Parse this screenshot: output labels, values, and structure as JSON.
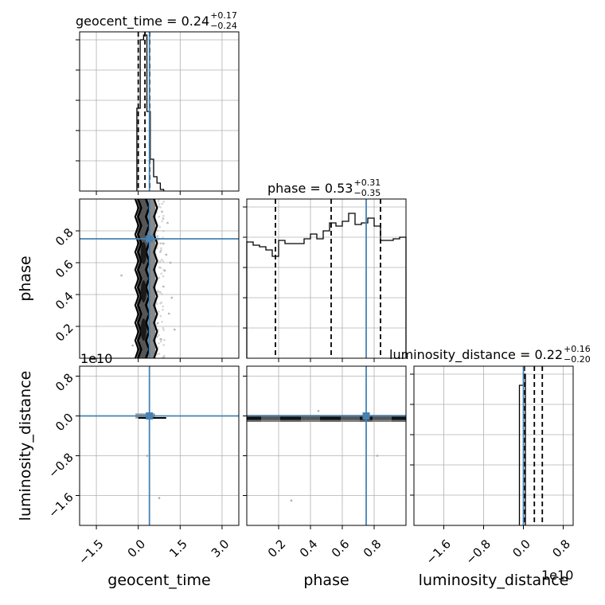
{
  "chart_data": {
    "type": "corner",
    "parameters": [
      "geocent_time",
      "phase",
      "luminosity_distance"
    ],
    "truth_color": "#4682b4",
    "titles": [
      {
        "param": "geocent_time",
        "median": "0.24",
        "plus": "+0.17",
        "minus": "−0.24"
      },
      {
        "param": "phase",
        "median": "0.53",
        "plus": "+0.31",
        "minus": "−0.35"
      },
      {
        "param": "luminosity_distance",
        "median": "0.22",
        "plus": "+0.16",
        "minus": "−0.20"
      }
    ],
    "axis_labels": {
      "x": [
        "geocent_time",
        "phase",
        "luminosity_distance"
      ],
      "y": [
        "phase",
        "luminosity_distance"
      ]
    },
    "offset_labels": {
      "ld_y": "1e10",
      "ld_x": "1e10"
    },
    "truths": {
      "geocent_time": 0.4,
      "phase": 0.75,
      "luminosity_distance": 0.0
    },
    "ranges": {
      "geocent_time": [
        -2.1,
        3.6
      ],
      "phase": [
        0.0,
        1.0
      ],
      "luminosity_distance": [
        -2.2,
        1.0
      ]
    },
    "ticks": {
      "geocent_time": {
        "values": [
          -1.5,
          0.0,
          1.5,
          3.0
        ],
        "labels": [
          "−1.5",
          "0.0",
          "1.5",
          "3.0"
        ]
      },
      "phase_x": {
        "values": [
          0.2,
          0.4,
          0.6,
          0.8
        ],
        "labels": [
          "0.2",
          "0.4",
          "0.6",
          "0.8"
        ]
      },
      "phase_y": {
        "values": [
          0.2,
          0.4,
          0.6,
          0.8
        ],
        "labels": [
          "0.2",
          "0.4",
          "0.6",
          "0.8"
        ]
      },
      "luminosity_distance_x": {
        "values": [
          -1.6,
          -0.8,
          0.0,
          0.8
        ],
        "labels": [
          "−1.6",
          "−0.8",
          "0.0",
          "0.8"
        ]
      },
      "luminosity_distance_y": {
        "values": [
          -1.6,
          -0.8,
          0.0,
          0.8
        ],
        "labels": [
          "−1.6",
          "−0.8",
          "0.0",
          "0.8"
        ]
      }
    },
    "quantile_lines": {
      "geocent_time": [
        0.0,
        0.24,
        0.41
      ],
      "phase": [
        0.18,
        0.53,
        0.84
      ],
      "luminosity_distance": [
        0.02,
        0.22,
        0.38
      ]
    },
    "histograms": {
      "geocent_time": {
        "edges": [
          -0.05,
          0.07,
          0.19,
          0.31,
          0.43,
          0.55,
          0.67,
          0.79,
          0.91
        ],
        "density": [
          0.52,
          0.95,
          0.98,
          0.5,
          0.2,
          0.09,
          0.05,
          0.01
        ]
      },
      "phase": {
        "edges": [
          0.0,
          0.04,
          0.08,
          0.12,
          0.16,
          0.2,
          0.24,
          0.28,
          0.32,
          0.36,
          0.4,
          0.44,
          0.48,
          0.52,
          0.56,
          0.6,
          0.64,
          0.68,
          0.72,
          0.76,
          0.8,
          0.84,
          0.88,
          0.92,
          0.96,
          1.0
        ],
        "density": [
          0.73,
          0.71,
          0.7,
          0.68,
          0.64,
          0.74,
          0.72,
          0.72,
          0.72,
          0.75,
          0.78,
          0.75,
          0.8,
          0.85,
          0.83,
          0.86,
          0.91,
          0.84,
          0.85,
          0.88,
          0.83,
          0.74,
          0.74,
          0.75,
          0.76
        ]
      },
      "luminosity_distance": {
        "edges": [
          -0.08,
          0.0,
          0.04
        ],
        "density": [
          0.88,
          0.95
        ]
      }
    },
    "samples_2d": {
      "geocent_time_vs_phase": {
        "outliers": [
          [
            0.85,
            0.92
          ],
          [
            1.0,
            0.65
          ],
          [
            0.9,
            0.45
          ],
          [
            1.1,
            0.28
          ],
          [
            0.8,
            0.12
          ],
          [
            1.05,
            0.85
          ],
          [
            0.95,
            0.55
          ],
          [
            1.2,
            0.38
          ],
          [
            0.7,
            0.22
          ],
          [
            -0.2,
            0.08
          ],
          [
            -0.6,
            0.52
          ],
          [
            1.3,
            0.18
          ],
          [
            0.9,
            0.72
          ],
          [
            1.15,
            0.6
          ]
        ]
      },
      "phase_vs_luminosity_distance": {
        "outliers": [
          [
            0.45,
            0.1
          ],
          [
            0.28,
            -1.7
          ],
          [
            0.82,
            -0.8
          ]
        ]
      },
      "geocent_time_vs_luminosity_distance": {
        "outliers": [
          [
            0.32,
            -0.8
          ],
          [
            0.75,
            -1.65
          ]
        ]
      }
    }
  }
}
